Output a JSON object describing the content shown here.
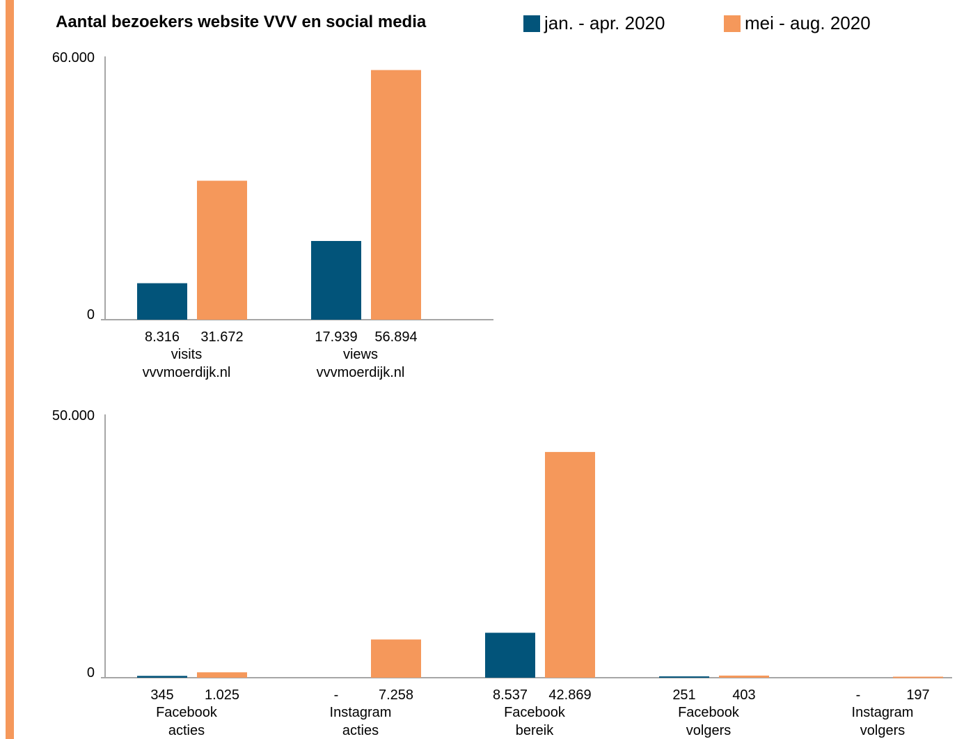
{
  "colors": {
    "accent": "#F5985B",
    "series1": "#02547A",
    "series2": "#F5985B",
    "axis": "#A6A6A6"
  },
  "chart_data": [
    {
      "type": "bar",
      "title": "Aantal bezoekers website VVV en social media",
      "legend": "top",
      "grid": false,
      "categories": [
        [
          "visits",
          "vvvmoerdijk.nl"
        ],
        [
          "views",
          "vvvmoerdijk.nl"
        ]
      ],
      "series": [
        {
          "name": "jan. - apr. 2020",
          "values": [
            8316,
            17939
          ],
          "labels": [
            "8.316",
            "17.939"
          ]
        },
        {
          "name": "mei - aug. 2020",
          "values": [
            31672,
            56894
          ],
          "labels": [
            "31.672",
            "56.894"
          ]
        }
      ],
      "ylim": [
        0,
        60000
      ],
      "yticks": [
        "0",
        "60.000"
      ]
    },
    {
      "type": "bar",
      "legend": "top",
      "grid": false,
      "categories": [
        [
          "Facebook",
          "acties"
        ],
        [
          "Instagram",
          "acties"
        ],
        [
          "Facebook",
          "bereik"
        ],
        [
          "Facebook",
          "volgers"
        ],
        [
          "Instagram",
          "volgers"
        ]
      ],
      "series": [
        {
          "name": "jan. - apr. 2020",
          "values": [
            345,
            0,
            8537,
            251,
            0
          ],
          "labels": [
            "345",
            "-",
            "8.537",
            "251",
            "-"
          ]
        },
        {
          "name": "mei - aug. 2020",
          "values": [
            1025,
            7258,
            42869,
            403,
            197
          ],
          "labels": [
            "1.025",
            "7.258",
            "42.869",
            "403",
            "197"
          ]
        }
      ],
      "ylim": [
        0,
        50000
      ],
      "yticks": [
        "0",
        "50.000"
      ]
    }
  ]
}
